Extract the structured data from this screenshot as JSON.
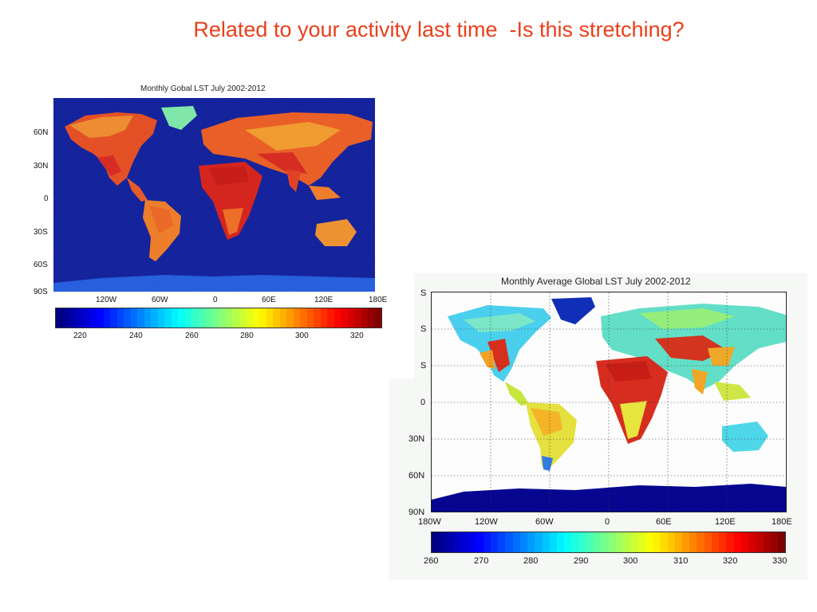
{
  "slide": {
    "title": "Related to your activity last time  -Is this stretching?"
  },
  "figure_left": {
    "title": "Monthly Gobal LST July 2002-2012",
    "lat_labels": [
      "60N",
      "30N",
      "0",
      "30S",
      "60S",
      "90S"
    ],
    "lon_labels": [
      "120W",
      "60W",
      "0",
      "60E",
      "120E",
      "180E"
    ],
    "colorbar_labels": [
      "220",
      "240",
      "260",
      "280",
      "300",
      "320"
    ],
    "ocean_color": "#0a1a9a",
    "colormap": "jet"
  },
  "figure_right": {
    "title": "Monthly Average Global LST July 2002-2012",
    "lat_labels": [
      "S",
      "S",
      "S",
      "0",
      "30N",
      "60N",
      "90N"
    ],
    "lon_labels": [
      "180W",
      "120W",
      "60W",
      "0",
      "60E",
      "120E",
      "180E"
    ],
    "colorbar_labels": [
      "260",
      "270",
      "280",
      "290",
      "300",
      "310",
      "320",
      "330"
    ],
    "ocean_color": "#ffffff",
    "antarctica_color": "#00008f",
    "colormap": "jet"
  }
}
